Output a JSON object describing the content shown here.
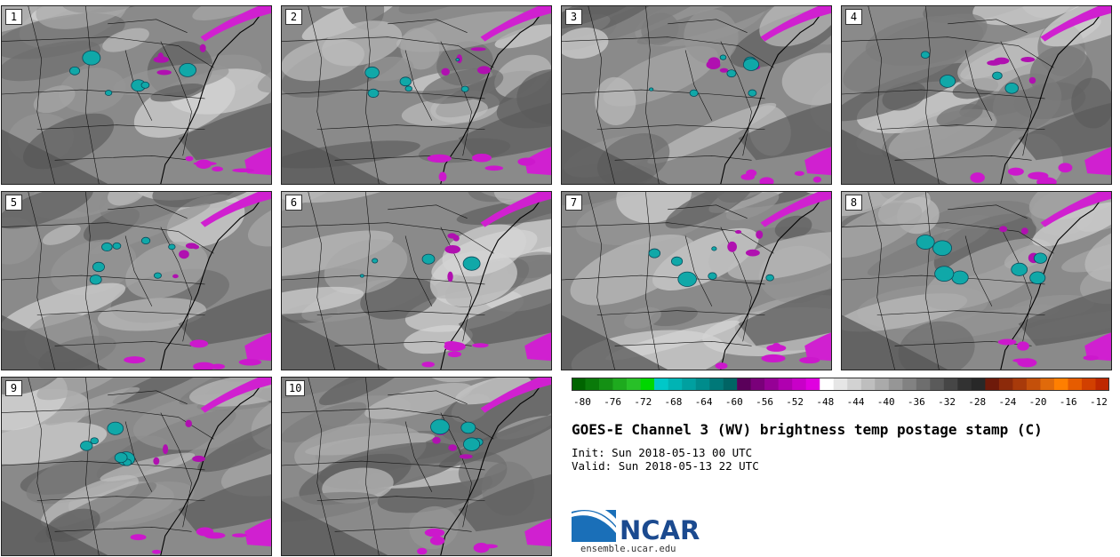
{
  "title": "GOES-E Channel 3 (WV) brightness temp postage stamp (C)",
  "init": "Sun 2018-05-13 00 UTC",
  "valid": "Sun 2018-05-13 22 UTC",
  "init_label": "Init:",
  "valid_label": "Valid:",
  "org": "NCAR",
  "website": "ensemble.ucar.edu",
  "panels": [
    {
      "label": "1"
    },
    {
      "label": "2"
    },
    {
      "label": "3"
    },
    {
      "label": "4"
    },
    {
      "label": "5"
    },
    {
      "label": "6"
    },
    {
      "label": "7"
    },
    {
      "label": "8"
    },
    {
      "label": "9"
    },
    {
      "label": "10"
    }
  ],
  "colorbar": {
    "tick_labels": [
      "-80",
      "-76",
      "-72",
      "-68",
      "-64",
      "-60",
      "-56",
      "-52",
      "-48",
      "-44",
      "-40",
      "-36",
      "-32",
      "-28",
      "-24",
      "-20",
      "-16",
      "-12"
    ],
    "colors": [
      "#006400",
      "#0a7a0a",
      "#149014",
      "#1eaa1e",
      "#28c028",
      "#00d700",
      "#00c8c8",
      "#00b4b4",
      "#00a0a0",
      "#008c8c",
      "#007878",
      "#006464",
      "#5a005a",
      "#7a007a",
      "#960096",
      "#b000b0",
      "#c800c8",
      "#e000e0",
      "#ffffff",
      "#e6e6e6",
      "#d2d2d2",
      "#bebebe",
      "#aaaaaa",
      "#969696",
      "#828282",
      "#6e6e6e",
      "#5a5a5a",
      "#464646",
      "#323232",
      "#282828",
      "#6e1a0a",
      "#8c2a0a",
      "#a83a0a",
      "#c4500a",
      "#e06a0a",
      "#ff7f00",
      "#e65c00",
      "#d24000",
      "#be2800"
    ]
  }
}
